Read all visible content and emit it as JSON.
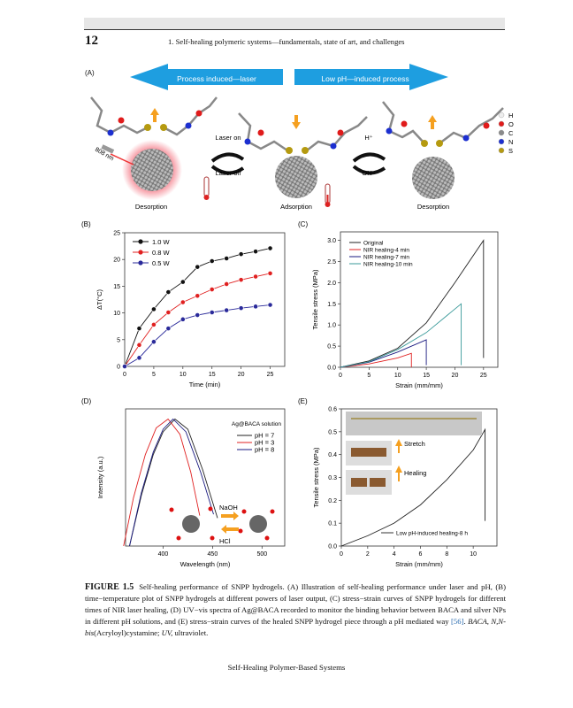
{
  "header": {
    "page_number": "12",
    "running_head": "1. Self-healing polymeric systems—fundamentals, state of art, and challenges"
  },
  "panel_a": {
    "label": "(A)",
    "arrow_left": "Process induced—laser",
    "arrow_right": "Low pH—induced process",
    "arrow_color": "#1e9ee0",
    "laser_on": "Laser on",
    "laser_off": "Laser off",
    "h_plus": "H⁺",
    "oh_minus": "OH⁻",
    "wavelength": "808 nm",
    "states": [
      "Desorption",
      "Adsorption",
      "Desorption"
    ],
    "atom_legend": [
      {
        "label": "H",
        "color": "#eeeeee"
      },
      {
        "label": "O",
        "color": "#e01b1b"
      },
      {
        "label": "C",
        "color": "#8a8a8a"
      },
      {
        "label": "N",
        "color": "#1c2fd0"
      },
      {
        "label": "S",
        "color": "#b59a10"
      }
    ]
  },
  "chart_data": [
    {
      "panel": "(B)",
      "type": "line",
      "xlabel": "Time (min)",
      "ylabel": "ΔT(°C)",
      "xlim": [
        0,
        27.5
      ],
      "ylim": [
        0,
        25
      ],
      "xticks": [
        0,
        5,
        10,
        15,
        20,
        25
      ],
      "yticks": [
        0,
        5,
        10,
        15,
        20,
        25
      ],
      "legend": "top-left",
      "x": [
        0,
        2.5,
        5,
        7.5,
        10,
        12.5,
        15,
        17.5,
        20,
        22.5,
        25
      ],
      "series": [
        {
          "name": "1.0 W",
          "color": "#111111",
          "values": [
            0,
            7.1,
            10.7,
            13.9,
            15.8,
            18.6,
            19.7,
            20.2,
            21.0,
            21.5,
            22.1
          ]
        },
        {
          "name": "0.8 W",
          "color": "#e02020",
          "values": [
            0,
            4.0,
            7.8,
            10.1,
            12.0,
            13.2,
            14.4,
            15.4,
            16.2,
            16.8,
            17.4
          ]
        },
        {
          "name": "0.5 W",
          "color": "#2a2a9a",
          "values": [
            0,
            1.6,
            4.6,
            7.1,
            8.8,
            9.6,
            10.1,
            10.5,
            10.9,
            11.2,
            11.5
          ]
        }
      ]
    },
    {
      "panel": "(C)",
      "type": "line",
      "xlabel": "Strain (mm/mm)",
      "ylabel": "Tensile stress (MPa)",
      "xlim": [
        0,
        27.5
      ],
      "ylim": [
        0,
        3.2
      ],
      "xticks": [
        0,
        5,
        10,
        15,
        20,
        25
      ],
      "yticks": [
        "0.0",
        "0.5",
        "1.0",
        "1.5",
        "2.0",
        "2.5",
        "3.0"
      ],
      "legend": "top-left",
      "series": [
        {
          "name": "Original",
          "color": "#222222",
          "points": [
            [
              0,
              0
            ],
            [
              5,
              0.15
            ],
            [
              10,
              0.45
            ],
            [
              15,
              1.05
            ],
            [
              20,
              2.0
            ],
            [
              25,
              3.0
            ],
            [
              25,
              0.22
            ]
          ]
        },
        {
          "name": "NIR healing-4 min",
          "color": "#e02020",
          "points": [
            [
              0,
              0
            ],
            [
              5,
              0.08
            ],
            [
              10,
              0.22
            ],
            [
              12.4,
              0.33
            ],
            [
              12.4,
              0
            ]
          ]
        },
        {
          "name": "NIR healing-7 min",
          "color": "#1a1a80",
          "points": [
            [
              0,
              0
            ],
            [
              5,
              0.12
            ],
            [
              10,
              0.36
            ],
            [
              15,
              0.65
            ],
            [
              15,
              0.05
            ]
          ]
        },
        {
          "name": "NIR healing-10 min",
          "color": "#3a9a9a",
          "points": [
            [
              0,
              0
            ],
            [
              5,
              0.13
            ],
            [
              10,
              0.42
            ],
            [
              15,
              0.82
            ],
            [
              21.1,
              1.5
            ],
            [
              21.1,
              0.05
            ]
          ]
        }
      ]
    },
    {
      "panel": "(D)",
      "type": "line",
      "xlabel": "Wavelength (nm)",
      "ylabel": "Intensity (a.u.)",
      "xlim": [
        362,
        523
      ],
      "ylim": [
        0,
        1.08
      ],
      "xticks": [
        400,
        450,
        500
      ],
      "yticks": [],
      "legend_title": "Ag@BACA solution",
      "legend": "top-right",
      "inset_labels": {
        "naoh": "NaOH",
        "hcl": "HCl"
      },
      "series": [
        {
          "name": "pH = 7",
          "color": "#222222",
          "points": [
            [
              366,
              0
            ],
            [
              378,
              0.4
            ],
            [
              390,
              0.72
            ],
            [
              400,
              0.9
            ],
            [
              412,
              1.0
            ],
            [
              425,
              0.92
            ],
            [
              440,
              0.6
            ],
            [
              455,
              0.22
            ]
          ]
        },
        {
          "name": "pH = 3",
          "color": "#e02020",
          "points": [
            [
              360,
              0
            ],
            [
              370,
              0.38
            ],
            [
              382,
              0.72
            ],
            [
              393,
              0.93
            ],
            [
              405,
              1.0
            ],
            [
              417,
              0.88
            ],
            [
              428,
              0.58
            ],
            [
              437,
              0.24
            ]
          ]
        },
        {
          "name": "pH = 8",
          "color": "#1a1a80",
          "points": [
            [
              366,
              0
            ],
            [
              378,
              0.42
            ],
            [
              390,
              0.74
            ],
            [
              400,
              0.92
            ],
            [
              410,
              1.0
            ],
            [
              423,
              0.9
            ],
            [
              438,
              0.58
            ],
            [
              451,
              0.25
            ]
          ]
        }
      ]
    },
    {
      "panel": "(E)",
      "type": "line",
      "xlabel": "Strain (mm/mm)",
      "ylabel": "Tensile stress (MPa)",
      "xlim": [
        0,
        11.8
      ],
      "ylim": [
        0,
        0.6
      ],
      "xticks": [
        0,
        2,
        4,
        6,
        8,
        10
      ],
      "yticks": [
        "0.0",
        "0.1",
        "0.2",
        "0.3",
        "0.4",
        "0.5",
        "0.6"
      ],
      "legend": "bottom-right",
      "inset_labels": {
        "stretch": "Stretch",
        "healing": "Healing"
      },
      "series": [
        {
          "name": "Low pH-induced healing-8 h",
          "color": "#222222",
          "points": [
            [
              0,
              0
            ],
            [
              2,
              0.045
            ],
            [
              4,
              0.1
            ],
            [
              6,
              0.18
            ],
            [
              8,
              0.29
            ],
            [
              10,
              0.42
            ],
            [
              10.9,
              0.51
            ],
            [
              10.9,
              0.11
            ]
          ]
        }
      ]
    }
  ],
  "caption": {
    "label": "FIGURE 1.5",
    "text1": "Self-healing performance of SNPP hydrogels. (A) Illustration of self-healing performance under laser and pH, (B) time−temperature plot of SNPP hydrogels at different powers of laser output, (C) stress−strain curves of SNPP hydrogels for different times of NIR laser healing, (D) UV−vis spectra of Ag@BACA recorded to monitor the binding behavior between BACA and silver NPs in different pH solutions, and (E) stress−strain curves of the healed SNPP hydrogel piece through a pH mediated way ",
    "ref": "[56]",
    "text2": ". ",
    "abbr1": "BACA, N,N-bis",
    "text3": "(Acryloyl)cystamine; ",
    "abbr2": "UV,",
    "text4": " ultraviolet."
  },
  "footer": "Self-Healing Polymer-Based Systems"
}
